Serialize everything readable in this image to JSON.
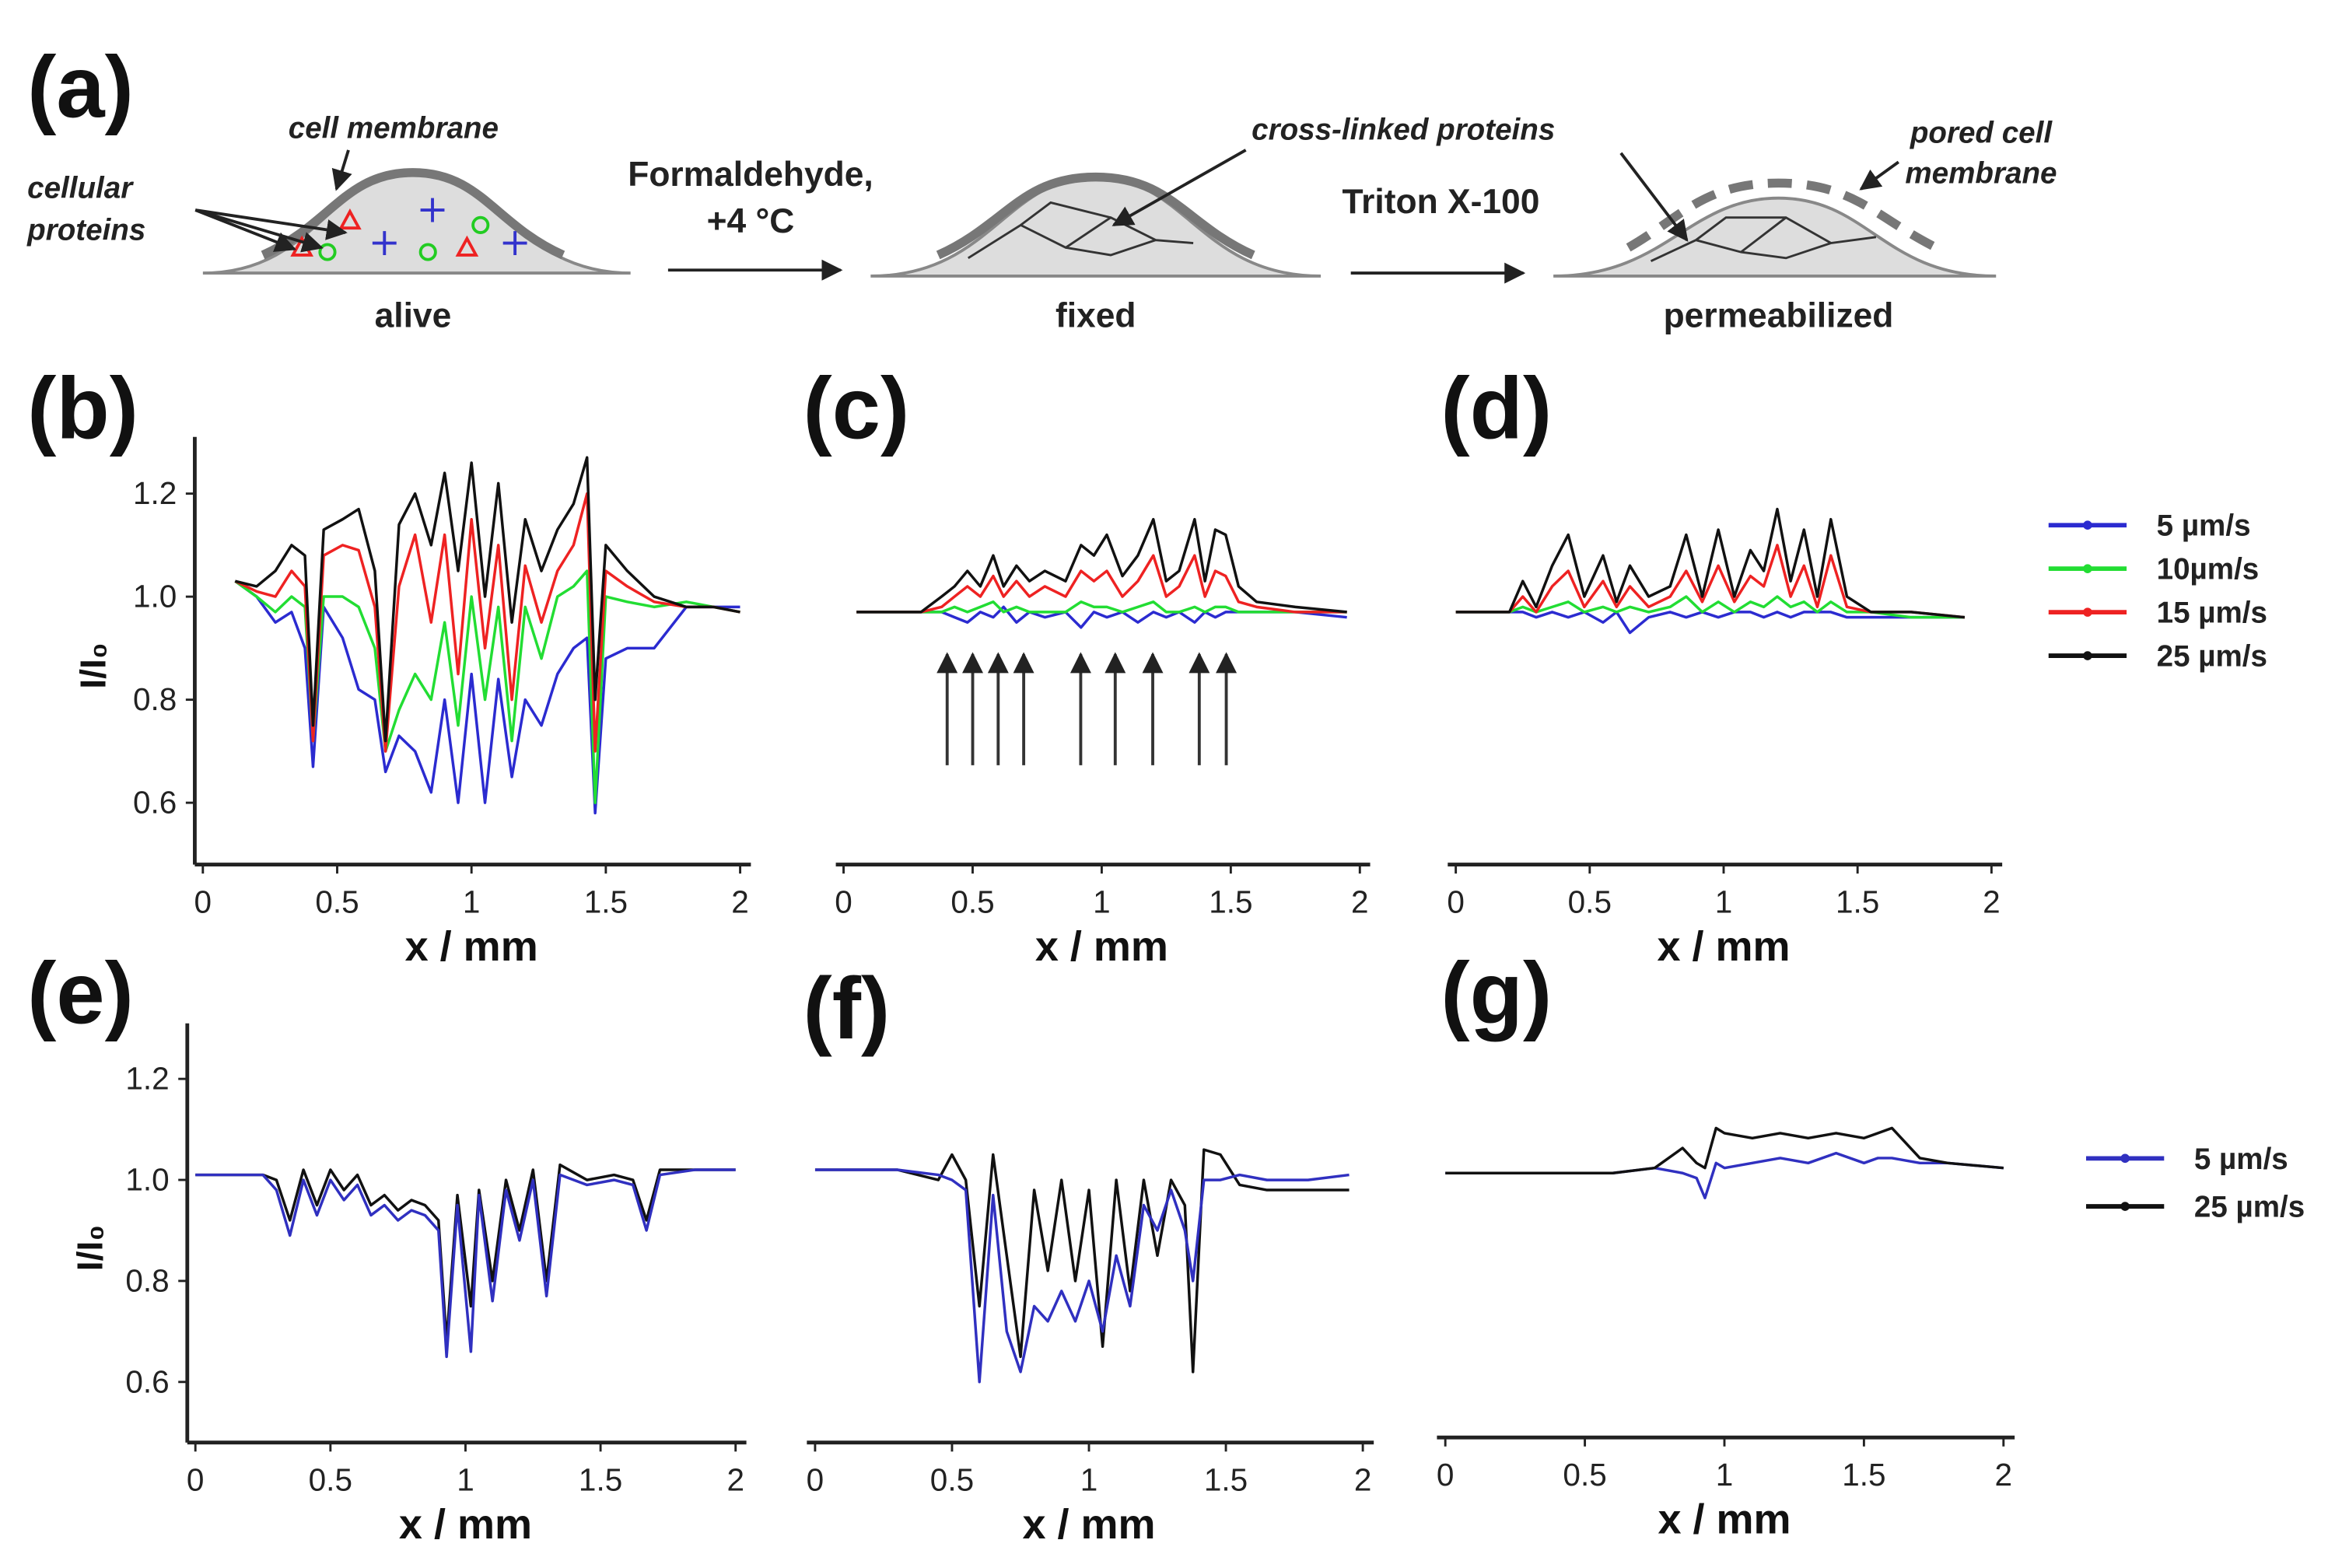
{
  "diagram": {
    "label": "(a)",
    "cell_membrane": "cell membrane",
    "cellular": "cellular",
    "proteins": "proteins",
    "alive": "alive",
    "formaldehyde": "Formaldehyde,",
    "temperature": "+4 °C",
    "fixed": "fixed",
    "cross_linked": "cross-linked proteins",
    "triton": "Triton X-100",
    "pored_cell": "pored cell",
    "membrane": "membrane",
    "permeabilized": "permeabilized"
  },
  "chart_data": [
    {
      "type": "line",
      "panel": "(b)",
      "xlabel": "x / mm",
      "ylabel": "I/I₀",
      "xlim": [
        -0.03,
        2.04
      ],
      "ylim": [
        0.48,
        1.31
      ],
      "xticks": [
        0,
        0.5,
        1,
        1.5,
        2
      ],
      "yticks": [
        0.6,
        0.8,
        {
          "value": 1.0,
          "label": "1.0"
        },
        1.2
      ],
      "x": [
        0.12,
        0.2,
        0.27,
        0.33,
        0.38,
        0.41,
        0.45,
        0.52,
        0.58,
        0.64,
        0.68,
        0.73,
        0.79,
        0.85,
        0.9,
        0.95,
        1.0,
        1.05,
        1.1,
        1.15,
        1.2,
        1.26,
        1.32,
        1.38,
        1.43,
        1.46,
        1.5,
        1.58,
        1.68,
        1.8,
        1.9,
        2.0
      ],
      "series": [
        {
          "color": "#2b2bd0",
          "values": [
            1.03,
            1.0,
            0.95,
            0.97,
            0.9,
            0.67,
            0.98,
            0.92,
            0.82,
            0.8,
            0.66,
            0.73,
            0.7,
            0.62,
            0.8,
            0.6,
            0.85,
            0.6,
            0.84,
            0.65,
            0.8,
            0.75,
            0.85,
            0.9,
            0.92,
            0.58,
            0.88,
            0.9,
            0.9,
            0.98,
            0.98,
            0.98
          ]
        },
        {
          "color": "#22dd33",
          "values": [
            1.03,
            1.0,
            0.97,
            1.0,
            0.98,
            0.72,
            1.0,
            1.0,
            0.98,
            0.9,
            0.7,
            0.78,
            0.85,
            0.8,
            0.95,
            0.75,
            1.0,
            0.8,
            0.98,
            0.72,
            0.98,
            0.88,
            1.0,
            1.02,
            1.05,
            0.6,
            1.0,
            0.99,
            0.98,
            0.99,
            0.98,
            0.97
          ]
        },
        {
          "color": "#ee2222",
          "values": [
            1.03,
            1.01,
            1.0,
            1.05,
            1.02,
            0.72,
            1.08,
            1.1,
            1.09,
            0.98,
            0.7,
            1.02,
            1.12,
            0.95,
            1.12,
            0.85,
            1.15,
            0.9,
            1.1,
            0.8,
            1.06,
            0.95,
            1.05,
            1.1,
            1.2,
            0.7,
            1.05,
            1.02,
            0.99,
            0.98,
            0.98,
            0.97
          ]
        },
        {
          "color": "#111111",
          "values": [
            1.03,
            1.02,
            1.05,
            1.1,
            1.08,
            0.75,
            1.13,
            1.15,
            1.17,
            1.05,
            0.72,
            1.14,
            1.2,
            1.1,
            1.24,
            1.05,
            1.26,
            1.0,
            1.22,
            0.95,
            1.15,
            1.05,
            1.13,
            1.18,
            1.27,
            0.8,
            1.1,
            1.05,
            1.0,
            0.98,
            0.98,
            0.97
          ]
        }
      ]
    },
    {
      "type": "line",
      "panel": "(c)",
      "xlabel": "x / mm",
      "xlim": [
        -0.03,
        2.04
      ],
      "ylim": [
        0.48,
        1.31
      ],
      "xticks": [
        0,
        0.5,
        1,
        1.5,
        2
      ],
      "x": [
        0.05,
        0.3,
        0.38,
        0.43,
        0.48,
        0.53,
        0.58,
        0.62,
        0.67,
        0.72,
        0.78,
        0.86,
        0.92,
        0.97,
        1.02,
        1.08,
        1.14,
        1.2,
        1.25,
        1.3,
        1.36,
        1.4,
        1.44,
        1.48,
        1.53,
        1.6,
        1.75,
        1.95
      ],
      "series": [
        {
          "color": "#2b2bd0",
          "values": [
            0.97,
            0.97,
            0.97,
            0.96,
            0.95,
            0.97,
            0.96,
            0.98,
            0.95,
            0.97,
            0.96,
            0.97,
            0.94,
            0.97,
            0.96,
            0.97,
            0.95,
            0.97,
            0.96,
            0.97,
            0.95,
            0.97,
            0.96,
            0.97,
            0.97,
            0.97,
            0.97,
            0.96
          ]
        },
        {
          "color": "#22dd33",
          "values": [
            0.97,
            0.97,
            0.97,
            0.98,
            0.97,
            0.98,
            0.99,
            0.97,
            0.98,
            0.97,
            0.97,
            0.97,
            0.99,
            0.98,
            0.98,
            0.97,
            0.98,
            0.99,
            0.97,
            0.97,
            0.98,
            0.97,
            0.98,
            0.98,
            0.97,
            0.97,
            0.97,
            0.97
          ]
        },
        {
          "color": "#ee2222",
          "values": [
            0.97,
            0.97,
            0.98,
            1.0,
            1.02,
            1.0,
            1.04,
            1.0,
            1.03,
            1.0,
            1.02,
            1.0,
            1.05,
            1.03,
            1.05,
            1.0,
            1.03,
            1.08,
            1.0,
            1.02,
            1.08,
            1.0,
            1.05,
            1.04,
            0.99,
            0.98,
            0.97,
            0.97
          ]
        },
        {
          "color": "#111111",
          "values": [
            0.97,
            0.97,
            1.0,
            1.02,
            1.05,
            1.02,
            1.08,
            1.02,
            1.06,
            1.03,
            1.05,
            1.03,
            1.1,
            1.08,
            1.12,
            1.04,
            1.08,
            1.15,
            1.03,
            1.05,
            1.15,
            1.03,
            1.13,
            1.12,
            1.02,
            0.99,
            0.98,
            0.97
          ]
        }
      ]
    },
    {
      "type": "line",
      "panel": "(d)",
      "xlabel": "x / mm",
      "xlim": [
        -0.03,
        2.04
      ],
      "ylim": [
        0.48,
        1.31
      ],
      "xticks": [
        0,
        0.5,
        1,
        1.5,
        2
      ],
      "x": [
        0,
        0.2,
        0.25,
        0.3,
        0.36,
        0.42,
        0.48,
        0.55,
        0.6,
        0.65,
        0.72,
        0.8,
        0.86,
        0.92,
        0.98,
        1.04,
        1.1,
        1.15,
        1.2,
        1.25,
        1.3,
        1.35,
        1.4,
        1.46,
        1.55,
        1.7,
        1.9
      ],
      "series": [
        {
          "name": "5 µm/s",
          "color": "#2b2bd0",
          "values": [
            0.97,
            0.97,
            0.97,
            0.96,
            0.97,
            0.96,
            0.97,
            0.95,
            0.97,
            0.93,
            0.96,
            0.97,
            0.96,
            0.97,
            0.96,
            0.97,
            0.97,
            0.96,
            0.97,
            0.96,
            0.97,
            0.97,
            0.97,
            0.96,
            0.96,
            0.96,
            0.96
          ]
        },
        {
          "name": "10µm/s",
          "color": "#22dd33",
          "values": [
            0.97,
            0.97,
            0.98,
            0.97,
            0.98,
            0.99,
            0.97,
            0.98,
            0.97,
            0.98,
            0.97,
            0.98,
            1.0,
            0.97,
            0.99,
            0.97,
            0.99,
            0.98,
            1.0,
            0.98,
            0.99,
            0.97,
            0.99,
            0.97,
            0.97,
            0.96,
            0.96
          ]
        },
        {
          "name": "15 µm/s",
          "color": "#ee2222",
          "values": [
            0.97,
            0.97,
            1.0,
            0.97,
            1.02,
            1.05,
            0.98,
            1.03,
            0.98,
            1.02,
            0.98,
            1.0,
            1.05,
            0.99,
            1.06,
            0.99,
            1.04,
            1.02,
            1.1,
            1.0,
            1.06,
            0.98,
            1.08,
            0.98,
            0.97,
            0.97,
            0.96
          ]
        },
        {
          "name": "25 µm/s",
          "color": "#111111",
          "values": [
            0.97,
            0.97,
            1.03,
            0.98,
            1.06,
            1.12,
            1.0,
            1.08,
            0.99,
            1.06,
            1.0,
            1.02,
            1.12,
            1.0,
            1.13,
            1.0,
            1.09,
            1.05,
            1.17,
            1.03,
            1.13,
            1.0,
            1.15,
            1.0,
            0.97,
            0.97,
            0.96
          ]
        }
      ]
    },
    {
      "type": "line",
      "panel": "(e)",
      "xlabel": "x / mm",
      "ylabel": "I/I₀",
      "xlim": [
        -0.03,
        2.04
      ],
      "ylim": [
        0.48,
        1.31
      ],
      "xticks": [
        0,
        0.5,
        1,
        1.5,
        2
      ],
      "yticks": [
        0.6,
        0.8,
        {
          "value": 1.0,
          "label": "1.0"
        },
        1.2
      ],
      "x": [
        0,
        0.25,
        0.3,
        0.35,
        0.4,
        0.45,
        0.5,
        0.55,
        0.6,
        0.65,
        0.7,
        0.75,
        0.8,
        0.85,
        0.9,
        0.93,
        0.97,
        1.02,
        1.05,
        1.1,
        1.15,
        1.2,
        1.25,
        1.3,
        1.35,
        1.45,
        1.55,
        1.62,
        1.67,
        1.72,
        1.85,
        2.0
      ],
      "series": [
        {
          "color": "#111111",
          "values": [
            1.01,
            1.01,
            1.0,
            0.92,
            1.02,
            0.95,
            1.02,
            0.98,
            1.01,
            0.95,
            0.97,
            0.94,
            0.96,
            0.95,
            0.92,
            0.68,
            0.97,
            0.75,
            0.98,
            0.8,
            1.0,
            0.9,
            1.02,
            0.8,
            1.03,
            1.0,
            1.01,
            1.0,
            0.92,
            1.02,
            1.02,
            1.02
          ]
        },
        {
          "color": "#3030c0",
          "values": [
            1.01,
            1.01,
            0.98,
            0.89,
            1.0,
            0.93,
            1.0,
            0.96,
            0.99,
            0.93,
            0.95,
            0.92,
            0.94,
            0.93,
            0.9,
            0.65,
            0.95,
            0.66,
            0.97,
            0.76,
            0.98,
            0.88,
            1.0,
            0.77,
            1.01,
            0.99,
            1.0,
            0.99,
            0.9,
            1.01,
            1.02,
            1.02
          ]
        }
      ]
    },
    {
      "type": "line",
      "panel": "(f)",
      "xlabel": "x / mm",
      "xlim": [
        -0.03,
        2.04
      ],
      "ylim": [
        0.48,
        1.31
      ],
      "xticks": [
        0,
        0.5,
        1,
        1.5,
        2
      ],
      "x": [
        0,
        0.3,
        0.45,
        0.5,
        0.55,
        0.6,
        0.65,
        0.7,
        0.75,
        0.8,
        0.85,
        0.9,
        0.95,
        1.0,
        1.05,
        1.1,
        1.15,
        1.2,
        1.25,
        1.3,
        1.35,
        1.38,
        1.42,
        1.48,
        1.55,
        1.65,
        1.8,
        1.95
      ],
      "series": [
        {
          "color": "#111111",
          "values": [
            1.02,
            1.02,
            1.0,
            1.05,
            1.0,
            0.75,
            1.05,
            0.85,
            0.65,
            0.98,
            0.82,
            1.0,
            0.8,
            0.98,
            0.67,
            1.0,
            0.78,
            1.0,
            0.85,
            1.0,
            0.95,
            0.62,
            1.06,
            1.05,
            0.99,
            0.98,
            0.98,
            0.98
          ]
        },
        {
          "color": "#3030c0",
          "values": [
            1.02,
            1.02,
            1.01,
            1.0,
            0.98,
            0.6,
            0.97,
            0.7,
            0.62,
            0.75,
            0.72,
            0.78,
            0.72,
            0.8,
            0.7,
            0.85,
            0.75,
            0.95,
            0.9,
            0.98,
            0.9,
            0.8,
            1.0,
            1.0,
            1.01,
            1.0,
            1.0,
            1.01
          ]
        }
      ]
    },
    {
      "type": "line",
      "panel": "(g)",
      "xlabel": "x / mm",
      "xlim": [
        -0.03,
        2.04
      ],
      "ylim": [
        0.48,
        1.31
      ],
      "xticks": [
        0,
        0.5,
        1,
        1.5,
        2
      ],
      "x": [
        0,
        0.6,
        0.75,
        0.85,
        0.9,
        0.93,
        0.97,
        1.0,
        1.1,
        1.2,
        1.3,
        1.4,
        1.5,
        1.55,
        1.6,
        1.7,
        1.8,
        2.0
      ],
      "series": [
        {
          "name": "5 µm/s",
          "color": "#3030c0",
          "values": [
            1.01,
            1.01,
            1.02,
            1.01,
            1.0,
            0.96,
            1.03,
            1.02,
            1.03,
            1.04,
            1.03,
            1.05,
            1.03,
            1.04,
            1.04,
            1.03,
            1.03,
            1.02
          ]
        },
        {
          "name": "25 µm/s",
          "color": "#111111",
          "values": [
            1.01,
            1.01,
            1.02,
            1.06,
            1.03,
            1.02,
            1.1,
            1.09,
            1.08,
            1.09,
            1.08,
            1.09,
            1.08,
            1.09,
            1.1,
            1.04,
            1.03,
            1.02
          ]
        }
      ]
    }
  ]
}
